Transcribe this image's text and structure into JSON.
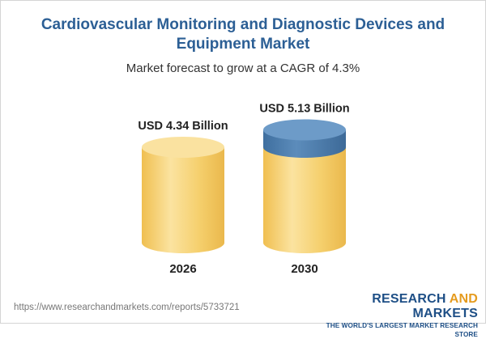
{
  "title": "Cardiovascular Monitoring and Diagnostic Devices and Equipment Market",
  "subtitle": "Market forecast to grow at a CAGR of 4.3%",
  "source_url": "https://www.researchandmarkets.com/reports/5733721",
  "logo": {
    "part1": "RESEARCH ",
    "part2": "AND",
    "part3": " MARKETS",
    "tagline": "THE WORLD'S LARGEST MARKET RESEARCH STORE"
  },
  "colors": {
    "title": "#2c5f95",
    "cylinder_body": "#f5cc66",
    "cylinder_highlight": "#fbe7a6",
    "cylinder_top": "#fae2a0",
    "growth_segment": "#4f7fae",
    "growth_top": "#6d9bc8"
  },
  "chart_data": {
    "type": "bar",
    "style": "cylinder",
    "categories": [
      "2026",
      "2030"
    ],
    "values": [
      4.34,
      5.13
    ],
    "value_labels": [
      "USD 4.34 Billion",
      "USD 5.13 Billion"
    ],
    "unit": "USD Billion",
    "cagr": "4.3%"
  }
}
